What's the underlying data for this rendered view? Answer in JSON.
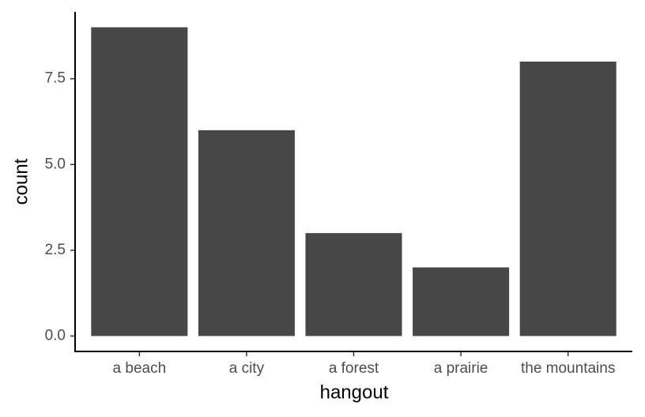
{
  "chart_data": {
    "type": "bar",
    "x_label": "hangout",
    "y_label": "count",
    "categories": [
      "a beach",
      "a city",
      "a forest",
      "a prairie",
      "the mountains"
    ],
    "values": [
      9,
      6,
      3,
      2,
      8
    ],
    "color": "#474747",
    "ylim": [
      -0.45,
      9.45
    ],
    "yticks": [
      {
        "value": 0,
        "label": "0.0"
      },
      2.5,
      {
        "value": 5,
        "label": "5.0"
      },
      7.5
    ],
    "grid": false
  }
}
